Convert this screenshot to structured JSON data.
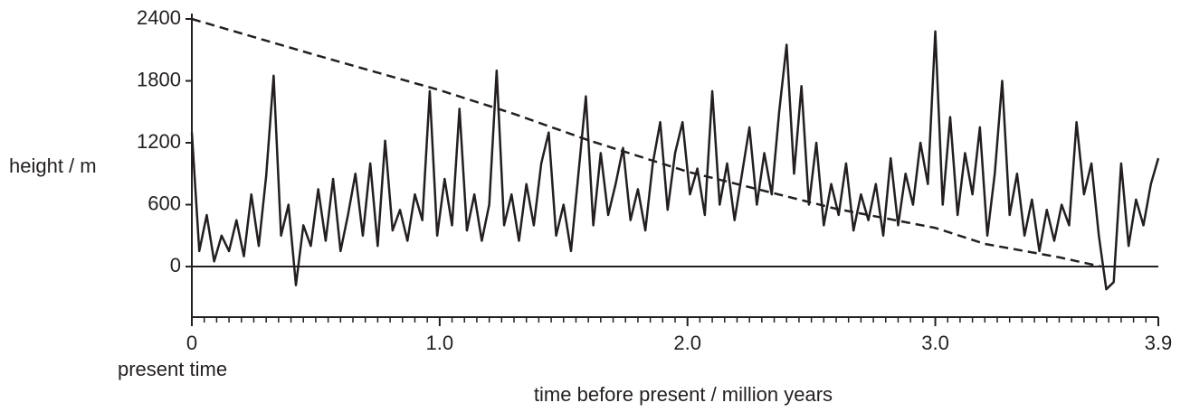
{
  "chart_data": {
    "type": "line",
    "y_label": "height / m",
    "x_label": "time before present / million years",
    "annotation": "present time",
    "xlim": [
      0,
      3.9
    ],
    "ylim": [
      -490,
      2400
    ],
    "xticks": [
      0,
      {
        "value": 1,
        "label": "1.0"
      },
      {
        "value": 2,
        "label": "2.0"
      },
      {
        "value": 3,
        "label": "3.0"
      },
      3.9
    ],
    "xminor_ticks": [
      0.05,
      0.1,
      0.15,
      0.2,
      0.25,
      0.3,
      0.35,
      0.4,
      0.45,
      0.5,
      0.55,
      0.6,
      0.65,
      0.7,
      0.75,
      0.8,
      0.85,
      0.9,
      0.95,
      1.05,
      1.1,
      1.15,
      1.2,
      1.25,
      1.3,
      1.35,
      1.4,
      1.45,
      1.5,
      1.55,
      1.6,
      1.65,
      1.7,
      1.75,
      1.8,
      1.85,
      1.9,
      1.95,
      2.05,
      2.1,
      2.15,
      2.2,
      2.25,
      2.3,
      2.35,
      2.4,
      2.45,
      2.5,
      2.55,
      2.6,
      2.65,
      2.7,
      2.75,
      2.8,
      2.85,
      2.9,
      2.95,
      3.05,
      3.1,
      3.15,
      3.2,
      3.25,
      3.3,
      3.35,
      3.4,
      3.45,
      3.5,
      3.55,
      3.6,
      3.65,
      3.7,
      3.75,
      3.8,
      3.85
    ],
    "yticks": [
      2400,
      1800,
      1200,
      600,
      0
    ],
    "zero_line": 0,
    "series": [
      {
        "color": "#231f20",
        "style": "solid",
        "x": [
          0,
          0.03,
          0.06,
          0.09,
          0.12,
          0.15,
          0.18,
          0.21,
          0.24,
          0.27,
          0.3,
          0.33,
          0.36,
          0.39,
          0.42,
          0.45,
          0.48,
          0.51,
          0.54,
          0.57,
          0.6,
          0.63,
          0.66,
          0.69,
          0.72,
          0.75,
          0.78,
          0.81,
          0.84,
          0.87,
          0.9,
          0.93,
          0.96,
          0.99,
          1.02,
          1.05,
          1.08,
          1.11,
          1.14,
          1.17,
          1.2,
          1.23,
          1.26,
          1.29,
          1.32,
          1.35,
          1.38,
          1.41,
          1.44,
          1.47,
          1.5,
          1.53,
          1.56,
          1.59,
          1.62,
          1.65,
          1.68,
          1.71,
          1.74,
          1.77,
          1.8,
          1.83,
          1.86,
          1.89,
          1.92,
          1.95,
          1.98,
          2.01,
          2.04,
          2.07,
          2.1,
          2.13,
          2.16,
          2.19,
          2.22,
          2.25,
          2.28,
          2.31,
          2.34,
          2.37,
          2.4,
          2.43,
          2.46,
          2.49,
          2.52,
          2.55,
          2.58,
          2.61,
          2.64,
          2.67,
          2.7,
          2.73,
          2.76,
          2.79,
          2.82,
          2.85,
          2.88,
          2.91,
          2.94,
          2.97,
          3,
          3.03,
          3.06,
          3.09,
          3.12,
          3.15,
          3.18,
          3.21,
          3.24,
          3.27,
          3.3,
          3.33,
          3.36,
          3.39,
          3.42,
          3.45,
          3.48,
          3.51,
          3.54,
          3.57,
          3.6,
          3.63,
          3.66,
          3.69,
          3.72,
          3.75,
          3.78,
          3.81,
          3.84,
          3.87,
          3.9
        ],
        "values": [
          1300,
          150,
          500,
          50,
          300,
          150,
          450,
          100,
          700,
          200,
          880,
          1850,
          300,
          600,
          -180,
          400,
          200,
          750,
          250,
          850,
          150,
          500,
          900,
          300,
          1000,
          200,
          1220,
          350,
          550,
          250,
          700,
          450,
          1700,
          300,
          850,
          400,
          1530,
          350,
          700,
          250,
          600,
          1900,
          400,
          700,
          250,
          800,
          400,
          1000,
          1300,
          300,
          600,
          150,
          900,
          1650,
          400,
          1100,
          500,
          800,
          1150,
          450,
          750,
          350,
          1000,
          1400,
          550,
          1100,
          1400,
          700,
          950,
          500,
          1700,
          600,
          1000,
          450,
          900,
          1350,
          600,
          1100,
          700,
          1500,
          2150,
          900,
          1750,
          600,
          1200,
          400,
          800,
          500,
          1000,
          350,
          700,
          450,
          800,
          300,
          1050,
          400,
          900,
          600,
          1200,
          800,
          2280,
          600,
          1450,
          500,
          1100,
          700,
          1350,
          300,
          900,
          1800,
          500,
          900,
          300,
          650,
          150,
          550,
          250,
          600,
          400,
          1400,
          700,
          1000,
          300,
          -220,
          -150,
          1000,
          200,
          650,
          400,
          800,
          1050
        ]
      },
      {
        "color": "#231f20",
        "style": "dashed",
        "x": [
          0,
          0.5,
          1,
          1.3,
          1.6,
          2,
          2.3,
          2.6,
          3,
          3.2,
          3.5,
          3.67
        ],
        "values": [
          2400,
          2050,
          1710,
          1480,
          1225,
          920,
          740,
          560,
          375,
          220,
          90,
          0
        ]
      }
    ]
  }
}
